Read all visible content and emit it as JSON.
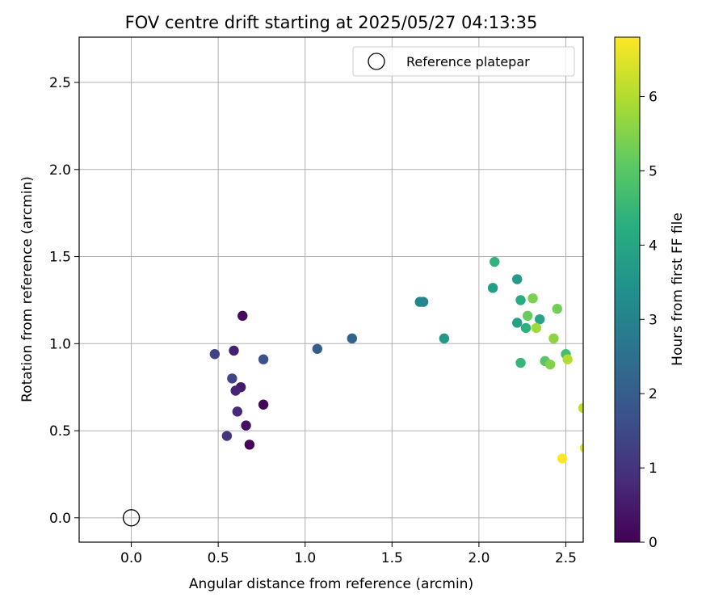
{
  "chart_data": {
    "type": "scatter",
    "title": "FOV centre drift starting at 2025/05/27 04:13:35",
    "xlabel": "Angular distance from reference (arcmin)",
    "ylabel": "Rotation from reference (arcmin)",
    "xlim": [
      -0.3,
      2.6
    ],
    "ylim": [
      -0.14,
      2.76
    ],
    "xticks": [
      0.0,
      0.5,
      1.0,
      1.5,
      2.0,
      2.5
    ],
    "xtick_labels": [
      "0.0",
      "0.5",
      "1.0",
      "1.5",
      "2.0",
      "2.5"
    ],
    "yticks": [
      0.0,
      0.5,
      1.0,
      1.5,
      2.0,
      2.5
    ],
    "ytick_labels": [
      "0.0",
      "0.5",
      "1.0",
      "1.5",
      "2.0",
      "2.5"
    ],
    "grid": true,
    "legend": {
      "placement": "top-right",
      "entries": [
        {
          "label": "Reference platepar",
          "marker": "open-circle"
        }
      ]
    },
    "reference_point": {
      "x": 0.0,
      "y": 0.0
    },
    "colorbar": {
      "label": "Hours from first FF file",
      "colormap": "viridis",
      "range": [
        0,
        6.8
      ],
      "ticks": [
        0,
        1,
        2,
        3,
        4,
        5,
        6
      ],
      "tick_labels": [
        "0",
        "1",
        "2",
        "3",
        "4",
        "5",
        "6"
      ]
    },
    "points": [
      {
        "x": 0.68,
        "y": 0.42,
        "hours": 0.0
      },
      {
        "x": 0.76,
        "y": 0.65,
        "hours": 0.1
      },
      {
        "x": 0.64,
        "y": 1.16,
        "hours": 0.2
      },
      {
        "x": 0.66,
        "y": 0.53,
        "hours": 0.3
      },
      {
        "x": 0.63,
        "y": 0.75,
        "hours": 0.5
      },
      {
        "x": 0.59,
        "y": 0.96,
        "hours": 0.6
      },
      {
        "x": 0.6,
        "y": 0.73,
        "hours": 0.7
      },
      {
        "x": 0.61,
        "y": 0.61,
        "hours": 0.8
      },
      {
        "x": 0.55,
        "y": 0.47,
        "hours": 1.0
      },
      {
        "x": 0.48,
        "y": 0.94,
        "hours": 1.3
      },
      {
        "x": 0.58,
        "y": 0.8,
        "hours": 1.4
      },
      {
        "x": 0.76,
        "y": 0.91,
        "hours": 1.7
      },
      {
        "x": 1.07,
        "y": 0.97,
        "hours": 2.0
      },
      {
        "x": 1.27,
        "y": 1.03,
        "hours": 2.2
      },
      {
        "x": 1.66,
        "y": 1.24,
        "hours": 3.0
      },
      {
        "x": 1.68,
        "y": 1.24,
        "hours": 3.1
      },
      {
        "x": 1.8,
        "y": 1.03,
        "hours": 3.6
      },
      {
        "x": 2.22,
        "y": 1.37,
        "hours": 3.7
      },
      {
        "x": 2.08,
        "y": 1.32,
        "hours": 3.8
      },
      {
        "x": 2.22,
        "y": 1.12,
        "hours": 3.9
      },
      {
        "x": 2.35,
        "y": 1.14,
        "hours": 4.0
      },
      {
        "x": 2.24,
        "y": 1.25,
        "hours": 4.2
      },
      {
        "x": 2.27,
        "y": 1.09,
        "hours": 4.3
      },
      {
        "x": 2.09,
        "y": 1.47,
        "hours": 4.4
      },
      {
        "x": 2.24,
        "y": 0.89,
        "hours": 4.5
      },
      {
        "x": 2.5,
        "y": 0.94,
        "hours": 4.7
      },
      {
        "x": 2.38,
        "y": 0.9,
        "hours": 5.0
      },
      {
        "x": 2.28,
        "y": 1.16,
        "hours": 5.2
      },
      {
        "x": 2.45,
        "y": 1.2,
        "hours": 5.3
      },
      {
        "x": 2.31,
        "y": 1.26,
        "hours": 5.4
      },
      {
        "x": 2.41,
        "y": 0.88,
        "hours": 5.5
      },
      {
        "x": 2.43,
        "y": 1.03,
        "hours": 5.6
      },
      {
        "x": 2.33,
        "y": 1.09,
        "hours": 5.8
      },
      {
        "x": 2.51,
        "y": 0.91,
        "hours": 6.0
      },
      {
        "x": 2.6,
        "y": 0.63,
        "hours": 6.1
      },
      {
        "x": 2.61,
        "y": 0.4,
        "hours": 6.5
      },
      {
        "x": 2.48,
        "y": 0.34,
        "hours": 6.8
      }
    ]
  },
  "colors": {
    "reference_marker": "#000000",
    "grid": "#b0b0b0",
    "axes": "#000000"
  }
}
